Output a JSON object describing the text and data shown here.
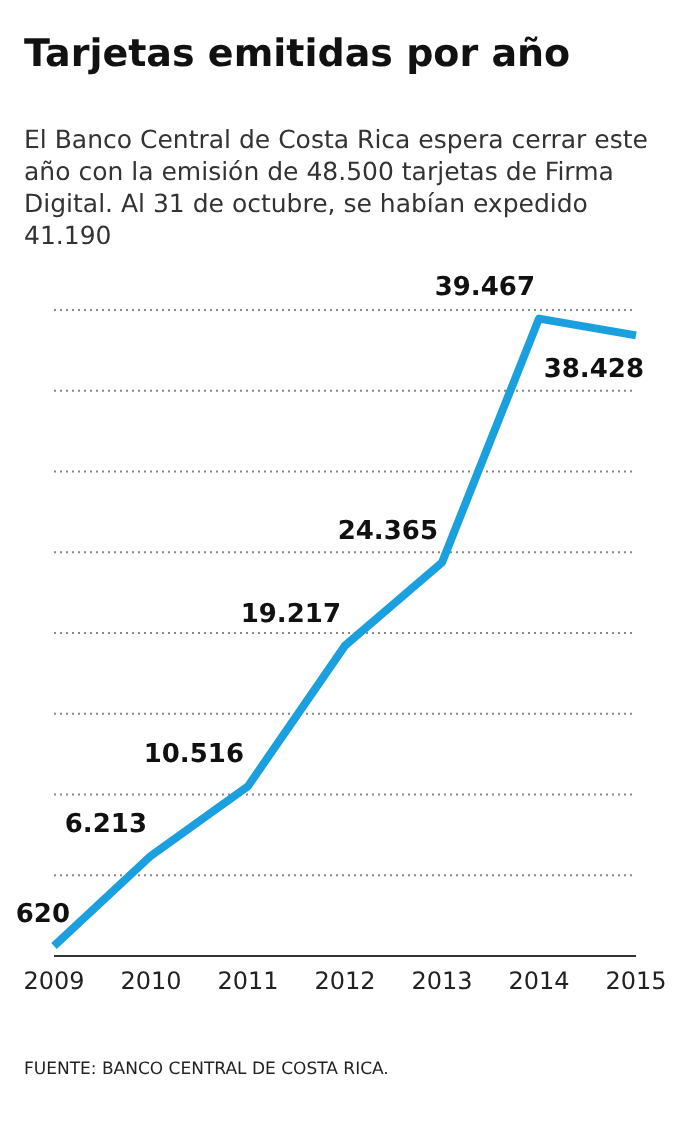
{
  "chart_data": {
    "type": "line",
    "title": "Tarjetas emitidas por año",
    "subtitle": "El Banco Central de Costa Rica espera cerrar este año con la emisión de 48.500 tarjetas de Firma Digital. Al 31 de octubre, se habían expedido 41.190",
    "categories": [
      "2009",
      "2010",
      "2011",
      "2012",
      "2013",
      "2014",
      "2015"
    ],
    "series": [
      {
        "color": "#1a9fdf",
        "values": [
          620,
          6213,
          10516,
          19217,
          24365,
          39467,
          38428
        ],
        "value_labels": [
          "620",
          "6.213",
          "10.516",
          "19.217",
          "24.365",
          "39.467",
          "38.428"
        ]
      }
    ],
    "ylim": [
      0,
      40000
    ],
    "yticks": [
      {
        "value": 0,
        "label": null
      },
      {
        "value": 5000,
        "label": null
      },
      {
        "value": 10000,
        "label": null
      },
      {
        "value": 15000,
        "label": null
      },
      {
        "value": 20000,
        "label": null
      },
      {
        "value": 25000,
        "label": null
      },
      {
        "value": 30000,
        "label": null
      },
      {
        "value": 35000,
        "label": null
      },
      {
        "value": 40000,
        "label": null
      }
    ],
    "grid": "y",
    "tick_labels": "x",
    "marker": "none",
    "line_style": "solid",
    "annotations": [
      "FUENTE: BANCO CENTRAL DE COSTA RICA."
    ]
  }
}
